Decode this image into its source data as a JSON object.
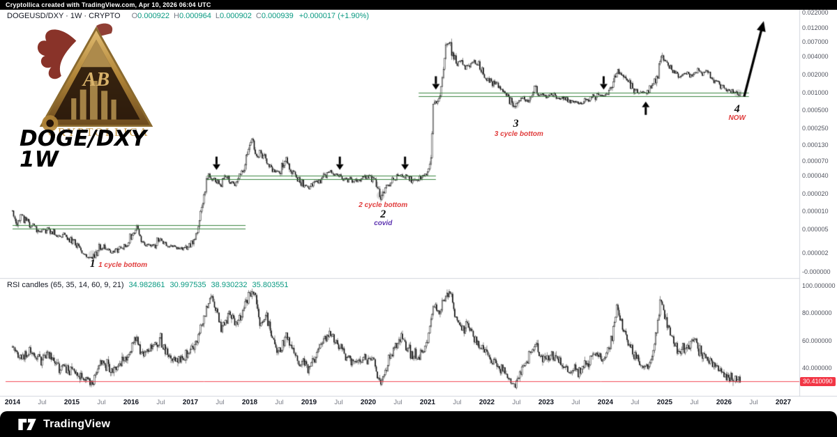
{
  "top_bar": {
    "text": "Cryptollica created with TradingView.com, Apr 10, 2026 06:04 UTC"
  },
  "symbol_legend": {
    "title": "DOGEUSD/DXY · 1W · CRYPTO",
    "o_label": "O",
    "o_value": "0.000922",
    "h_label": "H",
    "h_value": "0.000964",
    "l_label": "L",
    "l_value": "0.000902",
    "c_label": "C",
    "c_value": "0.000939",
    "change": "+0.000017 (+1.90%)"
  },
  "watermark": {
    "line1": "DOGE/DXY",
    "line2": "1W"
  },
  "logo_text": "CRYPTOLLICA",
  "rsi_legend": {
    "title": "RSI candles (65, 35, 14, 60, 9, 21)",
    "v1": "34.982861",
    "v2": "30.997535",
    "v3": "38.930232",
    "v4": "35.803551"
  },
  "footer": {
    "brand": "TradingView"
  },
  "colors": {
    "up": "#ffffff",
    "down": "#0a0a0a",
    "wick": "#1a1a1a",
    "level_green": "#2f7d33",
    "rsi_line_red": "#f23645",
    "accent_green": "#089981",
    "annotation_red": "#e03c3c",
    "annotation_purple": "#5e35b1",
    "separator": "#d1d4dc"
  },
  "chart_data": {
    "type": "candlestick",
    "symbol": "DOGEUSD/DXY",
    "timeframe": "1W",
    "scale": "log",
    "x_range": [
      2014.0,
      2027.3
    ],
    "price_axis_range": [
      2e-06,
      0.022
    ],
    "price_axis_ticks": [
      {
        "label": "0.022000",
        "value": 0.022
      },
      {
        "label": "0.012000",
        "value": 0.012
      },
      {
        "label": "0.007000",
        "value": 0.007
      },
      {
        "label": "0.004000",
        "value": 0.004
      },
      {
        "label": "0.002000",
        "value": 0.002
      },
      {
        "label": "0.001000",
        "value": 0.001
      },
      {
        "label": "0.000500",
        "value": 0.0005
      },
      {
        "label": "0.000250",
        "value": 0.00025
      },
      {
        "label": "0.000130",
        "value": 0.00013
      },
      {
        "label": "0.000070",
        "value": 7e-05
      },
      {
        "label": "0.000040",
        "value": 4e-05
      },
      {
        "label": "0.000020",
        "value": 2e-05
      },
      {
        "label": "0.000010",
        "value": 1e-05
      },
      {
        "label": "0.000005",
        "value": 5e-06
      },
      {
        "label": "0.000002",
        "value": 2e-06
      },
      {
        "label": "-0.000000",
        "value": null,
        "y": 390
      }
    ],
    "time_axis_ticks": [
      [
        "2014",
        2014
      ],
      [
        "Jul",
        2014.5
      ],
      [
        "2015",
        2015
      ],
      [
        "Jul",
        2015.5
      ],
      [
        "2016",
        2016
      ],
      [
        "Jul",
        2016.5
      ],
      [
        "2017",
        2017
      ],
      [
        "Jul",
        2017.5
      ],
      [
        "2018",
        2018
      ],
      [
        "Jul",
        2018.5
      ],
      [
        "2019",
        2019
      ],
      [
        "Jul",
        2019.5
      ],
      [
        "2020",
        2020
      ],
      [
        "Jul",
        2020.5
      ],
      [
        "2021",
        2021
      ],
      [
        "Jul",
        2021.5
      ],
      [
        "2022",
        2022
      ],
      [
        "Jul",
        2022.5
      ],
      [
        "2023",
        2023
      ],
      [
        "Jul",
        2023.5
      ],
      [
        "2024",
        2024
      ],
      [
        "Jul",
        2024.5
      ],
      [
        "2025",
        2025
      ],
      [
        "Jul",
        2025.5
      ],
      [
        "2026",
        2026
      ],
      [
        "Jul",
        2026.5
      ],
      [
        "2027",
        2027
      ]
    ],
    "price_anchors": [
      [
        2014.0,
        1.15e-05
      ],
      [
        2014.06,
        5.8e-06
      ],
      [
        2014.15,
        8e-06
      ],
      [
        2014.3,
        6e-06
      ],
      [
        2014.45,
        4.2e-06
      ],
      [
        2014.6,
        5.2e-06
      ],
      [
        2014.75,
        3.8e-06
      ],
      [
        2014.9,
        4e-06
      ],
      [
        2015.05,
        2.8e-06
      ],
      [
        2015.2,
        2e-06
      ],
      [
        2015.35,
        1.6e-06
      ],
      [
        2015.5,
        2.6e-06
      ],
      [
        2015.65,
        2.1e-06
      ],
      [
        2015.8,
        2.3e-06
      ],
      [
        2015.95,
        2.8e-06
      ],
      [
        2016.08,
        5.2e-06
      ],
      [
        2016.2,
        3e-06
      ],
      [
        2016.35,
        2.6e-06
      ],
      [
        2016.5,
        3.4e-06
      ],
      [
        2016.65,
        2.6e-06
      ],
      [
        2016.8,
        2.4e-06
      ],
      [
        2017.0,
        2.7e-06
      ],
      [
        2017.12,
        4.6e-06
      ],
      [
        2017.2,
        1.3e-05
      ],
      [
        2017.3,
        3.9e-05
      ],
      [
        2017.4,
        3.3e-05
      ],
      [
        2017.5,
        2.9e-05
      ],
      [
        2017.6,
        3.8e-05
      ],
      [
        2017.7,
        3e-05
      ],
      [
        2017.8,
        3.5e-05
      ],
      [
        2017.9,
        5.5e-05
      ],
      [
        2018.0,
        0.000125
      ],
      [
        2018.05,
        0.00016
      ],
      [
        2018.12,
        8e-05
      ],
      [
        2018.2,
        9.5e-05
      ],
      [
        2018.3,
        6e-05
      ],
      [
        2018.4,
        4.8e-05
      ],
      [
        2018.5,
        4.4e-05
      ],
      [
        2018.6,
        7.5e-05
      ],
      [
        2018.7,
        5e-05
      ],
      [
        2018.8,
        3.8e-05
      ],
      [
        2018.9,
        2.8e-05
      ],
      [
        2019.0,
        2.6e-05
      ],
      [
        2019.1,
        3.2e-05
      ],
      [
        2019.2,
        3.5e-05
      ],
      [
        2019.35,
        4.8e-05
      ],
      [
        2019.45,
        4.1e-05
      ],
      [
        2019.6,
        3.6e-05
      ],
      [
        2019.75,
        3.2e-05
      ],
      [
        2019.9,
        3.6e-05
      ],
      [
        2020.0,
        3.9e-05
      ],
      [
        2020.12,
        3.3e-05
      ],
      [
        2020.21,
        1.65e-05
      ],
      [
        2020.3,
        2.6e-05
      ],
      [
        2020.4,
        3.3e-05
      ],
      [
        2020.5,
        4.2e-05
      ],
      [
        2020.6,
        4e-05
      ],
      [
        2020.7,
        3.5e-05
      ],
      [
        2020.8,
        3.3e-05
      ],
      [
        2020.9,
        3.7e-05
      ],
      [
        2021.0,
        4.8e-05
      ],
      [
        2021.06,
        9e-05
      ],
      [
        2021.1,
        0.00075
      ],
      [
        2021.16,
        0.00068
      ],
      [
        2021.22,
        0.00085
      ],
      [
        2021.3,
        0.0048
      ],
      [
        2021.36,
        0.0078
      ],
      [
        2021.42,
        0.0042
      ],
      [
        2021.5,
        0.0028
      ],
      [
        2021.58,
        0.0036
      ],
      [
        2021.65,
        0.0028
      ],
      [
        2021.75,
        0.0034
      ],
      [
        2021.85,
        0.0028
      ],
      [
        2021.95,
        0.002
      ],
      [
        2022.05,
        0.0016
      ],
      [
        2022.15,
        0.0014
      ],
      [
        2022.25,
        0.0011
      ],
      [
        2022.35,
        0.00085
      ],
      [
        2022.45,
        0.0006
      ],
      [
        2022.52,
        0.00068
      ],
      [
        2022.6,
        0.00078
      ],
      [
        2022.7,
        0.00072
      ],
      [
        2022.8,
        0.00125
      ],
      [
        2022.9,
        0.00092
      ],
      [
        2023.0,
        0.00086
      ],
      [
        2023.1,
        0.00092
      ],
      [
        2023.2,
        0.00082
      ],
      [
        2023.3,
        0.00076
      ],
      [
        2023.45,
        0.0007
      ],
      [
        2023.6,
        0.00068
      ],
      [
        2023.7,
        0.00076
      ],
      [
        2023.8,
        0.00082
      ],
      [
        2023.9,
        0.00094
      ],
      [
        2024.0,
        0.00088
      ],
      [
        2024.1,
        0.00115
      ],
      [
        2024.2,
        0.0024
      ],
      [
        2024.28,
        0.0021
      ],
      [
        2024.35,
        0.00165
      ],
      [
        2024.45,
        0.00125
      ],
      [
        2024.55,
        0.001
      ],
      [
        2024.65,
        0.00094
      ],
      [
        2024.75,
        0.00115
      ],
      [
        2024.85,
        0.00165
      ],
      [
        2024.93,
        0.004
      ],
      [
        2025.0,
        0.0033
      ],
      [
        2025.08,
        0.0027
      ],
      [
        2025.16,
        0.0023
      ],
      [
        2025.25,
        0.00185
      ],
      [
        2025.35,
        0.00215
      ],
      [
        2025.45,
        0.0019
      ],
      [
        2025.55,
        0.00235
      ],
      [
        2025.63,
        0.002
      ],
      [
        2025.72,
        0.00215
      ],
      [
        2025.8,
        0.0017
      ],
      [
        2025.9,
        0.0014
      ],
      [
        2026.0,
        0.0012
      ],
      [
        2026.1,
        0.00105
      ],
      [
        2026.18,
        0.00098
      ],
      [
        2026.28,
        0.00094
      ]
    ],
    "support_resistance_bands": [
      {
        "from": 2014.0,
        "to": 2017.93,
        "top": 5.9e-06,
        "bottom": 5.2e-06
      },
      {
        "from": 2017.28,
        "to": 2021.14,
        "top": 4.05e-05,
        "bottom": 3.52e-05
      },
      {
        "from": 2020.85,
        "to": 2026.42,
        "top": 0.001,
        "bottom": 0.00087
      }
    ],
    "arrows": [
      {
        "dir": "down",
        "year": 2017.44,
        "price": 5e-05
      },
      {
        "dir": "down",
        "year": 2019.52,
        "price": 5e-05
      },
      {
        "dir": "down",
        "year": 2020.62,
        "price": 5e-05
      },
      {
        "dir": "down",
        "year": 2021.14,
        "price": 0.00112
      },
      {
        "dir": "down",
        "year": 2023.97,
        "price": 0.00112
      },
      {
        "dir": "up",
        "year": 2024.68,
        "price": 0.0007
      }
    ],
    "projection_arrow": {
      "from": [
        2026.34,
        0.00085
      ],
      "to": [
        2026.67,
        0.0158
      ]
    },
    "cycle_markers": [
      {
        "year": 2015.35,
        "price": 1.9e-06
      },
      {
        "year": 2020.21,
        "price": 1.85e-05
      },
      {
        "year": 2022.48,
        "price": 0.00062
      },
      {
        "year": 2026.24,
        "price": 0.00096
      }
    ],
    "annotations": [
      {
        "text": "1",
        "year": 2015.35,
        "price": 1.3e-06,
        "cls": "num"
      },
      {
        "text": "1 cycle bottom",
        "year": 2015.86,
        "price": 1.25e-06,
        "cls": "red"
      },
      {
        "text": "2 cycle bottom",
        "year": 2020.25,
        "price": 1.27e-05,
        "cls": "red"
      },
      {
        "text": "2",
        "year": 2020.25,
        "price": 8.8e-06,
        "cls": "num"
      },
      {
        "text": "covid",
        "year": 2020.25,
        "price": 6.3e-06,
        "cls": "purple"
      },
      {
        "text": "3",
        "year": 2022.49,
        "price": 0.000295,
        "cls": "num"
      },
      {
        "text": "3 cycle bottom",
        "year": 2022.54,
        "price": 0.000195,
        "cls": "red"
      },
      {
        "text": "4",
        "year": 2026.22,
        "price": 0.00052,
        "cls": "num"
      },
      {
        "text": "NOW",
        "year": 2026.22,
        "price": 0.00036,
        "cls": "red"
      }
    ],
    "rsi_pane": {
      "indicator": "RSI candles (65, 35, 14, 60, 9, 21)",
      "axis_range": [
        20,
        100
      ],
      "ticks": [
        {
          "label": "100.000000",
          "value": 100
        },
        {
          "label": "80.000000",
          "value": 80
        },
        {
          "label": "60.000000",
          "value": 60
        },
        {
          "label": "40.000000",
          "value": 40
        }
      ],
      "level_line": {
        "value": 30.41009,
        "label": "30.410090"
      },
      "anchors": [
        [
          2014.0,
          55
        ],
        [
          2014.15,
          47
        ],
        [
          2014.3,
          53
        ],
        [
          2014.45,
          46
        ],
        [
          2014.6,
          50
        ],
        [
          2014.75,
          43
        ],
        [
          2014.9,
          41
        ],
        [
          2015.05,
          37
        ],
        [
          2015.2,
          33
        ],
        [
          2015.35,
          30
        ],
        [
          2015.5,
          44
        ],
        [
          2015.65,
          39
        ],
        [
          2015.8,
          43
        ],
        [
          2015.95,
          48
        ],
        [
          2016.08,
          62
        ],
        [
          2016.2,
          50
        ],
        [
          2016.35,
          55
        ],
        [
          2016.5,
          60
        ],
        [
          2016.65,
          48
        ],
        [
          2016.8,
          45
        ],
        [
          2017.0,
          52
        ],
        [
          2017.12,
          62
        ],
        [
          2017.25,
          80
        ],
        [
          2017.35,
          95
        ],
        [
          2017.45,
          78
        ],
        [
          2017.55,
          68
        ],
        [
          2017.65,
          80
        ],
        [
          2017.78,
          72
        ],
        [
          2017.9,
          85
        ],
        [
          2018.0,
          93
        ],
        [
          2018.08,
          96
        ],
        [
          2018.18,
          72
        ],
        [
          2018.28,
          78
        ],
        [
          2018.4,
          58
        ],
        [
          2018.5,
          52
        ],
        [
          2018.6,
          63
        ],
        [
          2018.72,
          55
        ],
        [
          2018.85,
          44
        ],
        [
          2019.0,
          40
        ],
        [
          2019.12,
          50
        ],
        [
          2019.25,
          60
        ],
        [
          2019.38,
          65
        ],
        [
          2019.5,
          55
        ],
        [
          2019.65,
          48
        ],
        [
          2019.8,
          44
        ],
        [
          2019.95,
          49
        ],
        [
          2020.1,
          44
        ],
        [
          2020.21,
          29
        ],
        [
          2020.33,
          44
        ],
        [
          2020.45,
          55
        ],
        [
          2020.55,
          62
        ],
        [
          2020.7,
          52
        ],
        [
          2020.85,
          49
        ],
        [
          2021.0,
          58
        ],
        [
          2021.1,
          88
        ],
        [
          2021.2,
          80
        ],
        [
          2021.3,
          92
        ],
        [
          2021.38,
          97
        ],
        [
          2021.48,
          75
        ],
        [
          2021.58,
          68
        ],
        [
          2021.68,
          74
        ],
        [
          2021.8,
          62
        ],
        [
          2021.95,
          52
        ],
        [
          2022.1,
          45
        ],
        [
          2022.25,
          38
        ],
        [
          2022.4,
          31
        ],
        [
          2022.5,
          28
        ],
        [
          2022.62,
          42
        ],
        [
          2022.8,
          58
        ],
        [
          2022.95,
          46
        ],
        [
          2023.1,
          49
        ],
        [
          2023.25,
          44
        ],
        [
          2023.4,
          39
        ],
        [
          2023.55,
          37
        ],
        [
          2023.7,
          44
        ],
        [
          2023.85,
          50
        ],
        [
          2024.0,
          47
        ],
        [
          2024.12,
          62
        ],
        [
          2024.2,
          84
        ],
        [
          2024.3,
          68
        ],
        [
          2024.45,
          52
        ],
        [
          2024.6,
          43
        ],
        [
          2024.72,
          40
        ],
        [
          2024.82,
          55
        ],
        [
          2024.93,
          88
        ],
        [
          2025.0,
          78
        ],
        [
          2025.12,
          62
        ],
        [
          2025.25,
          52
        ],
        [
          2025.38,
          56
        ],
        [
          2025.5,
          60
        ],
        [
          2025.62,
          50
        ],
        [
          2025.75,
          45
        ],
        [
          2025.88,
          40
        ],
        [
          2026.0,
          36
        ],
        [
          2026.1,
          33
        ],
        [
          2026.2,
          31
        ],
        [
          2026.28,
          34
        ]
      ]
    }
  }
}
